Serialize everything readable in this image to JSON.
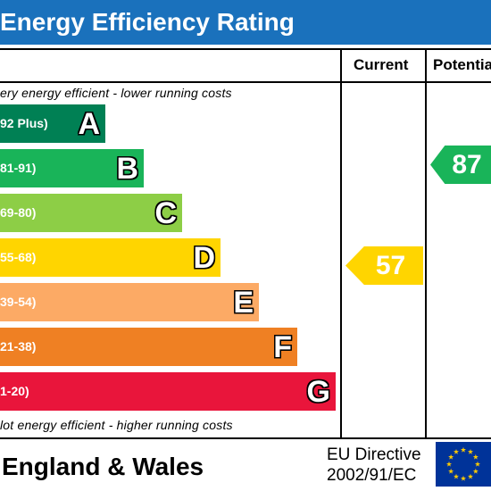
{
  "header": {
    "title": "Energy Efficiency Rating"
  },
  "columns": {
    "current": "Current",
    "potential": "Potentia"
  },
  "notes": {
    "top": "ery energy efficient - lower running costs",
    "bottom": "lot energy efficient - higher running costs"
  },
  "chart_data": {
    "type": "bar",
    "title": "Energy Efficiency Rating",
    "bands": [
      {
        "letter": "A",
        "range": "92 Plus)",
        "min": 92,
        "max": 100,
        "color": "#008054"
      },
      {
        "letter": "B",
        "range": "81-91)",
        "min": 81,
        "max": 91,
        "color": "#19b459"
      },
      {
        "letter": "C",
        "range": "69-80)",
        "min": 69,
        "max": 80,
        "color": "#8dce46"
      },
      {
        "letter": "D",
        "range": "55-68)",
        "min": 55,
        "max": 68,
        "color": "#ffd500"
      },
      {
        "letter": "E",
        "range": "39-54)",
        "min": 39,
        "max": 54,
        "color": "#fcaa65"
      },
      {
        "letter": "F",
        "range": "21-38)",
        "min": 21,
        "max": 38,
        "color": "#ef8023"
      },
      {
        "letter": "G",
        "range": "1-20)",
        "min": 1,
        "max": 20,
        "color": "#e9153b"
      }
    ],
    "ratings": {
      "current": {
        "value": 57,
        "label": "57",
        "band": "D",
        "color": "#ffd500"
      },
      "potential": {
        "value": 87,
        "label": "87",
        "band": "B",
        "color": "#19b459"
      }
    }
  },
  "footer": {
    "country": "England & Wales",
    "directive_line1": "EU Directive",
    "directive_line2": "2002/91/EC",
    "flag_icon": "eu-flag-icon"
  }
}
